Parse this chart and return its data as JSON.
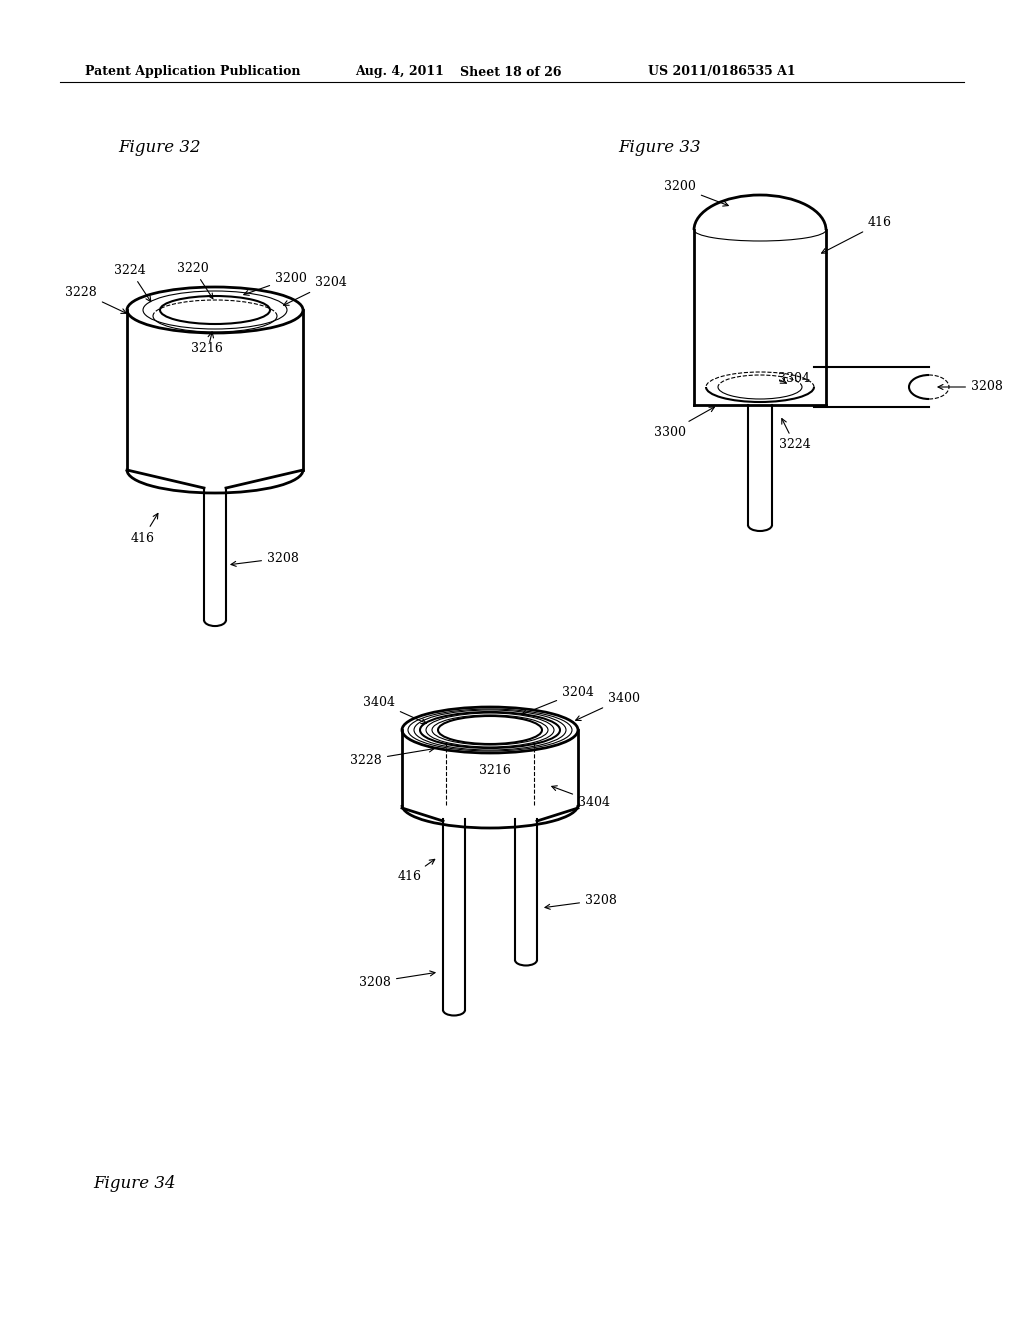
{
  "bg_color": "#ffffff",
  "header_text": "Patent Application Publication",
  "header_date": "Aug. 4, 2011",
  "header_sheet": "Sheet 18 of 26",
  "header_patent": "US 2011/0186535 A1",
  "fig32_label": "Figure 32",
  "fig33_label": "Figure 33",
  "fig34_label": "Figure 34",
  "line_color": "#000000",
  "line_width": 1.5,
  "thin_line": 0.8
}
